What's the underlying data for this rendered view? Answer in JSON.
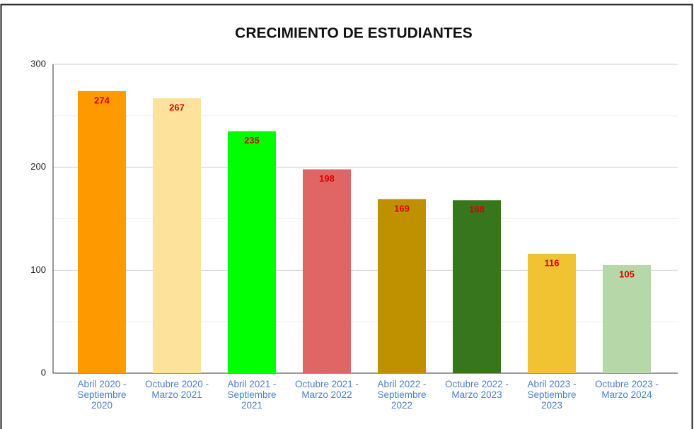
{
  "chart_data": {
    "type": "bar",
    "title": "CRECIMIENTO DE ESTUDIANTES",
    "categories": [
      "Abril 2020 - Septiembre 2020",
      "Octubre 2020 - Marzo 2021",
      "Abril 2021 - Septiembre 2021",
      "Octubre 2021 - Marzo 2022",
      "Abril 2022 - Septiembre 2022",
      "Octubre 2022 - Marzo 2023",
      "Abril 2023 - Septiembre 2023",
      "Octubre 2023 - Marzo 2024"
    ],
    "values": [
      274,
      267,
      235,
      198,
      169,
      168,
      116,
      105
    ],
    "colors": [
      "#ff9900",
      "#fde29b",
      "#00ff00",
      "#e06666",
      "#bf9000",
      "#38761d",
      "#f1c232",
      "#b6d7a8"
    ],
    "ylim": [
      0,
      300
    ],
    "yticks": [
      0,
      100,
      200,
      300
    ],
    "minor_yticks": [
      50,
      150,
      250
    ],
    "grid": true
  }
}
